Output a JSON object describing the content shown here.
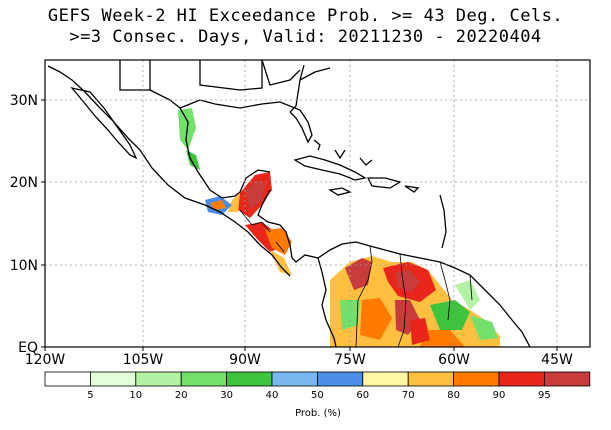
{
  "title": {
    "line1": "GEFS Week-2 HI Exceedance Prob. >= 43 Deg. Cels.",
    "line2": ">=3 Consec. Days, Valid: 20211230 - 20220404"
  },
  "map": {
    "lon_ticks": [
      {
        "value": -120,
        "label": "120W"
      },
      {
        "value": -105,
        "label": "105W"
      },
      {
        "value": -90,
        "label": "90W"
      },
      {
        "value": -75,
        "label": "75W"
      },
      {
        "value": -60,
        "label": "60W"
      },
      {
        "value": -45,
        "label": "45W"
      }
    ],
    "lat_ticks": [
      {
        "value": 0,
        "label": "EQ"
      },
      {
        "value": 10,
        "label": "10N"
      },
      {
        "value": 20,
        "label": "20N"
      },
      {
        "value": 30,
        "label": "30N"
      }
    ],
    "lon_range": [
      -120,
      -40
    ],
    "lat_range": [
      0,
      35
    ]
  },
  "legend": {
    "colors": [
      "#ffffff",
      "#e1ffd9",
      "#b3f2a4",
      "#73e06b",
      "#3ec43c",
      "#78b7f0",
      "#4a8ee8",
      "#fff6a6",
      "#ffc040",
      "#ff7a00",
      "#e8261a",
      "#c83c3c"
    ],
    "labels": [
      "5",
      "10",
      "20",
      "30",
      "40",
      "50",
      "60",
      "70",
      "80",
      "90",
      "95"
    ],
    "title": "Prob. (%)"
  }
}
